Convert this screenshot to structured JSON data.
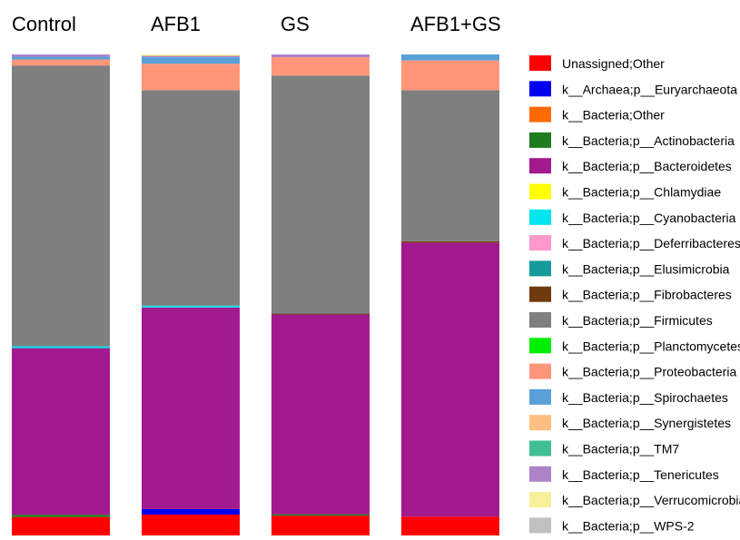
{
  "chart_data": {
    "type": "bar",
    "stacked": true,
    "normalized": true,
    "categories": [
      "Control",
      "AFB1",
      "GS",
      "AFB1+GS"
    ],
    "ylim": [
      0,
      1
    ],
    "grid": false,
    "legend_position": "right",
    "series": [
      {
        "name": "Unassigned;Other",
        "color": "#ff0000",
        "values": [
          0.04,
          0.045,
          0.043,
          0.041
        ]
      },
      {
        "name": "k__Archaea;p__Euryarchaeota",
        "color": "#0000ee",
        "values": [
          0.0,
          0.012,
          0.0,
          0.0
        ]
      },
      {
        "name": "k__Bacteria;Other",
        "color": "#ff6a00",
        "values": [
          0.0,
          0.0,
          0.0,
          0.0
        ]
      },
      {
        "name": "k__Bacteria;p__Actinobacteria",
        "color": "#1e7b1e",
        "values": [
          0.005,
          0.0,
          0.003,
          0.0
        ]
      },
      {
        "name": "k__Bacteria;p__Bacteroidetes",
        "color": "#a3198f",
        "values": [
          0.362,
          0.435,
          0.434,
          0.597
        ]
      },
      {
        "name": "k__Bacteria;p__Chlamydiae",
        "color": "#ffff00",
        "values": [
          0.0,
          0.0,
          0.0,
          0.0
        ]
      },
      {
        "name": "k__Bacteria;p__Cyanobacteria",
        "color": "#00e5ee",
        "values": [
          0.004,
          0.004,
          0.0,
          0.0
        ]
      },
      {
        "name": "k__Bacteria;p__Deferribacteres",
        "color": "#ff99cc",
        "values": [
          0.0,
          0.0,
          0.0,
          0.0
        ]
      },
      {
        "name": "k__Bacteria;p__Elusimicrobia",
        "color": "#139a9a",
        "values": [
          0.0,
          0.0,
          0.0,
          0.0
        ]
      },
      {
        "name": "k__Bacteria;p__Fibrobacteres",
        "color": "#6e3a0e",
        "values": [
          0.0,
          0.0,
          0.002,
          0.003
        ]
      },
      {
        "name": "k__Bacteria;p__Firmicutes",
        "color": "#7f7f7f",
        "values": [
          0.61,
          0.465,
          0.517,
          0.329
        ]
      },
      {
        "name": "k__Bacteria;p__Planctomycetes",
        "color": "#00ee00",
        "values": [
          0.0,
          0.0,
          0.0,
          0.0
        ]
      },
      {
        "name": "k__Bacteria;p__Proteobacteria",
        "color": "#ff967a",
        "values": [
          0.013,
          0.057,
          0.04,
          0.065
        ]
      },
      {
        "name": "k__Bacteria;p__Spirochaetes",
        "color": "#5aa0d8",
        "values": [
          0.006,
          0.014,
          0.0,
          0.013
        ]
      },
      {
        "name": "k__Bacteria;p__Synergistetes",
        "color": "#ffbf80",
        "values": [
          0.0,
          0.0,
          0.0,
          0.0
        ]
      },
      {
        "name": "k__Bacteria;p__TM7",
        "color": "#40c090",
        "values": [
          0.0,
          0.0,
          0.0,
          0.0
        ]
      },
      {
        "name": "k__Bacteria;p__Tenericutes",
        "color": "#ad83c8",
        "values": [
          0.005,
          0.003,
          0.006,
          0.0
        ]
      },
      {
        "name": "k__Bacteria;p__Verrucomicrobia",
        "color": "#f6f09a",
        "values": [
          0.0,
          0.003,
          0.0,
          0.0
        ]
      },
      {
        "name": "k__Bacteria;p__WPS-2",
        "color": "#c0c0c0",
        "values": [
          0.0,
          0.0,
          0.0,
          0.0
        ]
      }
    ]
  }
}
